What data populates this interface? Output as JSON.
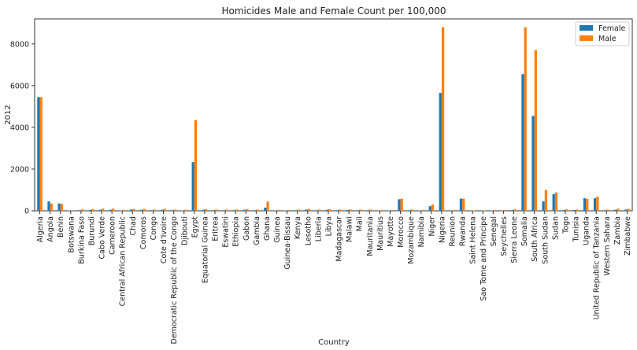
{
  "chart_data": {
    "type": "bar",
    "title": "Homicides Male and Female Count per 100,000",
    "xlabel": "Country",
    "ylabel": "2012",
    "ylim": [
      0,
      9200
    ],
    "yticks": [
      0,
      2000,
      4000,
      6000,
      8000
    ],
    "legend_position": "top-right",
    "categories": [
      "Algeria",
      "Angola",
      "Benin",
      "Botswana",
      "Burkina Faso",
      "Burundi",
      "Cabo Verde",
      "Cameroon",
      "Central African Republic",
      "Chad",
      "Comoros",
      "Congo",
      "Cote d'Ivoire",
      "Democratic Republic of the Congo",
      "Djibouti",
      "Egypt",
      "Equatorial Guinea",
      "Eritrea",
      "Eswatini",
      "Ethiopia",
      "Gabon",
      "Gambia",
      "Ghana",
      "Guinea",
      "Guinea-Bissau",
      "Kenya",
      "Lesotho",
      "Liberia",
      "Libya",
      "Madagascar",
      "Malawi",
      "Mali",
      "Mauritania",
      "Mauritius",
      "Mayotte",
      "Morocco",
      "Mozambique",
      "Namibia",
      "Niger",
      "Nigeria",
      "Reunion",
      "Rwanda",
      "Saint Helena",
      "Sao Tome and Principe",
      "Senegal",
      "Seychelles",
      "Sierra Leone",
      "Somalia",
      "South Africa",
      "South Sudan",
      "Sudan",
      "Togo",
      "Tunisia",
      "Uganda",
      "United Republic of Tanzania",
      "Western Sahara",
      "Zambia",
      "Zimbabwe"
    ],
    "series": [
      {
        "name": "Female",
        "color": "#1f77b4",
        "values": [
          5450,
          450,
          350,
          20,
          30,
          40,
          50,
          50,
          20,
          60,
          50,
          30,
          50,
          30,
          20,
          2330,
          50,
          30,
          30,
          30,
          50,
          30,
          150,
          20,
          20,
          30,
          60,
          30,
          50,
          30,
          40,
          30,
          30,
          20,
          20,
          550,
          30,
          20,
          220,
          5650,
          20,
          580,
          10,
          10,
          20,
          20,
          40,
          6550,
          4550,
          450,
          800,
          40,
          40,
          600,
          600,
          30,
          50,
          60
        ]
      },
      {
        "name": "Male",
        "color": "#ff7f0e",
        "values": [
          5450,
          350,
          330,
          30,
          70,
          80,
          100,
          100,
          50,
          90,
          90,
          60,
          90,
          60,
          50,
          4350,
          80,
          60,
          60,
          60,
          80,
          60,
          440,
          40,
          40,
          60,
          90,
          60,
          80,
          60,
          70,
          60,
          60,
          40,
          40,
          580,
          60,
          40,
          300,
          8800,
          40,
          580,
          20,
          20,
          40,
          40,
          70,
          8800,
          7700,
          1000,
          880,
          70,
          60,
          570,
          680,
          60,
          100,
          90
        ]
      }
    ]
  }
}
